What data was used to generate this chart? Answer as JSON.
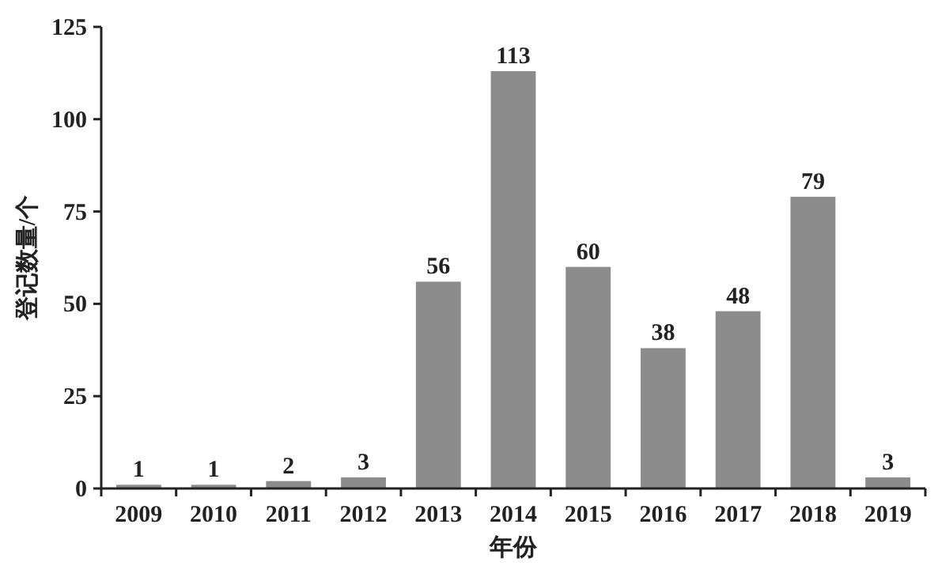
{
  "chart_data": {
    "type": "bar",
    "xlabel": "年份",
    "ylabel": "登记数量/个",
    "categories": [
      "2009",
      "2010",
      "2011",
      "2012",
      "2013",
      "2014",
      "2015",
      "2016",
      "2017",
      "2018",
      "2019"
    ],
    "values": [
      1,
      1,
      2,
      3,
      56,
      113,
      60,
      38,
      48,
      79,
      3
    ],
    "color": "#8c8c8c",
    "ylim": [
      0,
      125
    ],
    "yticks": [
      0,
      25,
      50,
      75,
      100,
      125
    ],
    "data_labels": true,
    "grid": false
  }
}
